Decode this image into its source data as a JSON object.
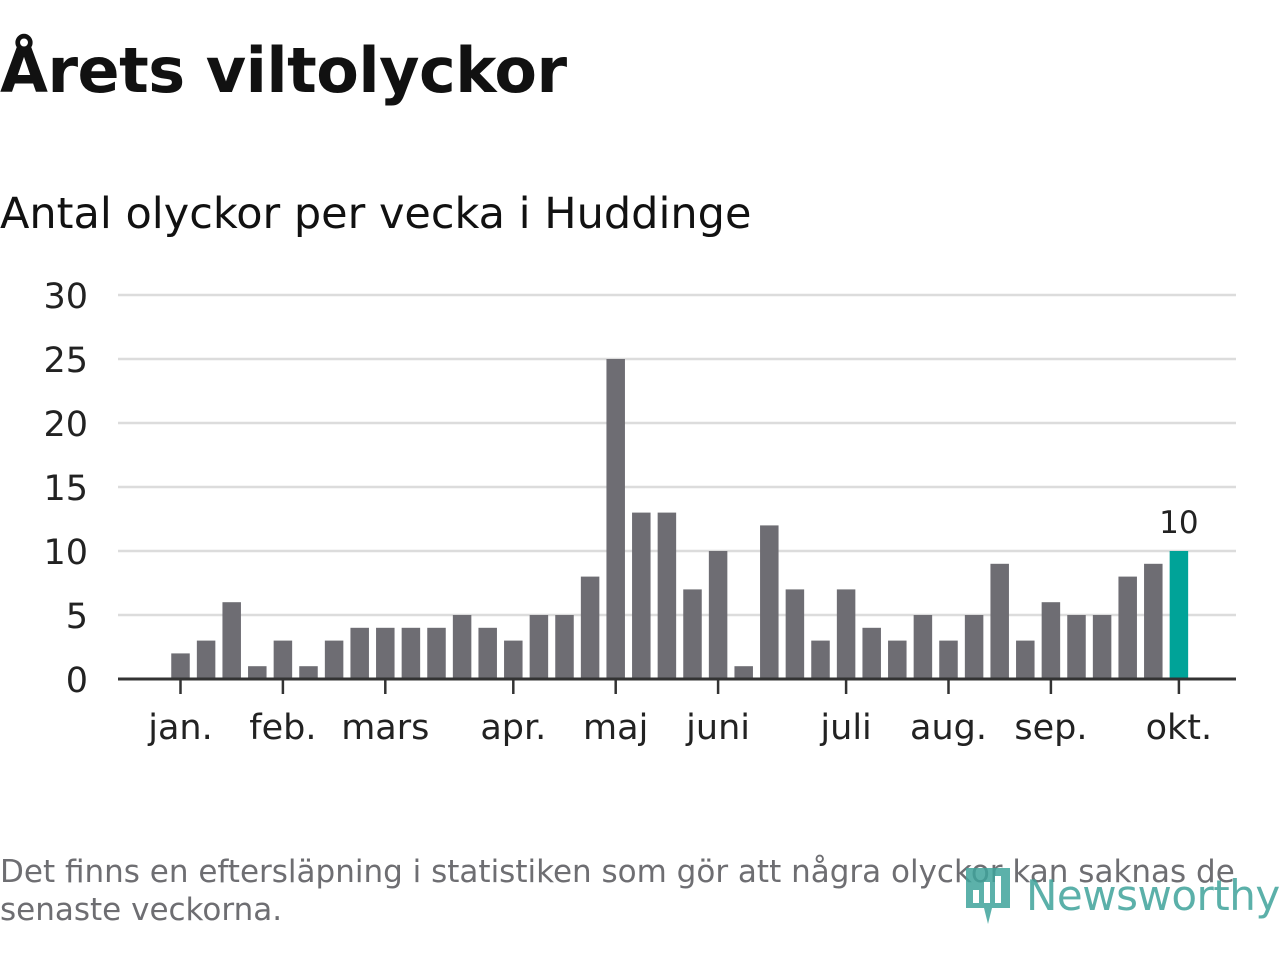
{
  "title": "Årets viltolyckor",
  "subtitle": "Antal olyckor per vecka i Huddinge",
  "footnote": "Det finns en eftersläpning i statistiken som gör att några olyckor kan saknas de senaste veckorna.",
  "brand": {
    "name": "Newsworthy",
    "icon": "newsworthy-logo-icon"
  },
  "colors": {
    "bar": "#6e6d73",
    "highlight": "#00a398",
    "grid": "#dcdcdc",
    "axis": "#333333",
    "text": "#111111",
    "brand": "#3fa39b"
  },
  "chart_data": {
    "type": "bar",
    "title": "Antal olyckor per vecka i Huddinge",
    "xlabel": "",
    "ylabel": "",
    "ylim": [
      0,
      30
    ],
    "yticks": [
      0,
      5,
      10,
      15,
      20,
      25,
      30
    ],
    "grid": true,
    "values": [
      2,
      3,
      6,
      1,
      3,
      1,
      3,
      4,
      4,
      4,
      4,
      5,
      4,
      3,
      5,
      5,
      8,
      25,
      13,
      13,
      7,
      10,
      1,
      12,
      7,
      3,
      7,
      4,
      3,
      5,
      3,
      5,
      9,
      3,
      6,
      5,
      5,
      8,
      9,
      10
    ],
    "highlight_index": 39,
    "annotation": {
      "index": 39,
      "text": "10"
    },
    "month_labels": [
      {
        "label": "jan.",
        "week": 0
      },
      {
        "label": "feb.",
        "week": 4
      },
      {
        "label": "mars",
        "week": 8
      },
      {
        "label": "apr.",
        "week": 13
      },
      {
        "label": "maj",
        "week": 17
      },
      {
        "label": "juni",
        "week": 21
      },
      {
        "label": "juli",
        "week": 26
      },
      {
        "label": "aug.",
        "week": 30
      },
      {
        "label": "sep.",
        "week": 34
      },
      {
        "label": "okt.",
        "week": 39
      }
    ]
  }
}
